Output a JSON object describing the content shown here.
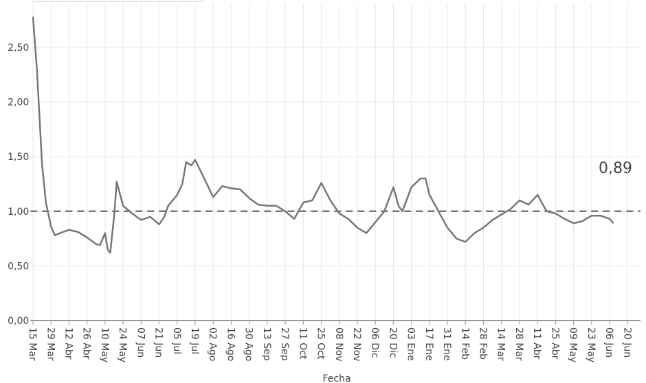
{
  "chart_data": {
    "type": "line",
    "x_label": "Fecha",
    "annotation": "0,89",
    "x": [
      0,
      3,
      7,
      10,
      14,
      17,
      21,
      28,
      35,
      42,
      49,
      52,
      56,
      58,
      60,
      63,
      65,
      70,
      77,
      84,
      91,
      98,
      102,
      105,
      112,
      116,
      119,
      123,
      126,
      133,
      140,
      147,
      154,
      161,
      168,
      175,
      182,
      189,
      196,
      203,
      210,
      217,
      224,
      231,
      238,
      245,
      252,
      259,
      266,
      273,
      280,
      284,
      287,
      294,
      301,
      305,
      308,
      315,
      322,
      329,
      336,
      343,
      350,
      357,
      364,
      371,
      378,
      385,
      392,
      399,
      406,
      413,
      420,
      427,
      434,
      441,
      448,
      451
    ],
    "values": [
      2.78,
      2.3,
      1.43,
      1.08,
      0.86,
      0.78,
      0.8,
      0.83,
      0.81,
      0.76,
      0.7,
      0.69,
      0.8,
      0.65,
      0.62,
      0.95,
      1.27,
      1.05,
      0.98,
      0.92,
      0.95,
      0.88,
      0.95,
      1.05,
      1.15,
      1.25,
      1.45,
      1.42,
      1.47,
      1.3,
      1.13,
      1.23,
      1.21,
      1.2,
      1.12,
      1.06,
      1.05,
      1.05,
      1.0,
      0.93,
      1.08,
      1.1,
      1.26,
      1.1,
      0.98,
      0.93,
      0.85,
      0.8,
      0.9,
      1.0,
      1.22,
      1.05,
      1.0,
      1.22,
      1.3,
      1.3,
      1.15,
      1.0,
      0.85,
      0.75,
      0.72,
      0.8,
      0.85,
      0.92,
      0.97,
      1.02,
      1.1,
      1.06,
      1.15,
      1.0,
      0.98,
      0.93,
      0.89,
      0.91,
      0.96,
      0.96,
      0.93,
      0.89
    ],
    "color": "#777777",
    "hline": 1,
    "grid": true,
    "xlim": [
      -2,
      472
    ],
    "ylim": [
      0,
      2.9
    ],
    "xticks": [
      {
        "value": 0,
        "label": "15 Mar"
      },
      {
        "value": 14,
        "label": "29 Mar"
      },
      {
        "value": 28,
        "label": "12 Abr"
      },
      {
        "value": 42,
        "label": "26 Abr"
      },
      {
        "value": 56,
        "label": "10 May"
      },
      {
        "value": 70,
        "label": "24 May"
      },
      {
        "value": 84,
        "label": "07 Jun"
      },
      {
        "value": 98,
        "label": "21 Jun"
      },
      {
        "value": 112,
        "label": "05 Jul"
      },
      {
        "value": 126,
        "label": "19 Jul"
      },
      {
        "value": 140,
        "label": "02 Ago"
      },
      {
        "value": 154,
        "label": "16 Ago"
      },
      {
        "value": 168,
        "label": "30 Ago"
      },
      {
        "value": 182,
        "label": "13 Sep"
      },
      {
        "value": 196,
        "label": "27 Sep"
      },
      {
        "value": 210,
        "label": "11 Oct"
      },
      {
        "value": 224,
        "label": "25 Oct"
      },
      {
        "value": 238,
        "label": "08 Nov"
      },
      {
        "value": 252,
        "label": "22 Nov"
      },
      {
        "value": 266,
        "label": "06 Dic"
      },
      {
        "value": 280,
        "label": "20 Dic"
      },
      {
        "value": 294,
        "label": "03 Ene"
      },
      {
        "value": 308,
        "label": "17 Ene"
      },
      {
        "value": 322,
        "label": "31 Ene"
      },
      {
        "value": 336,
        "label": "14 Feb"
      },
      {
        "value": 350,
        "label": "28 Feb"
      },
      {
        "value": 364,
        "label": "14 Mar"
      },
      {
        "value": 378,
        "label": "28 Mar"
      },
      {
        "value": 392,
        "label": "11 Abr"
      },
      {
        "value": 406,
        "label": "25 Abr"
      },
      {
        "value": 420,
        "label": "09 May"
      },
      {
        "value": 434,
        "label": "23 May"
      },
      {
        "value": 448,
        "label": "06 Jun"
      },
      {
        "value": 462,
        "label": "20 Jun"
      }
    ],
    "yticks": [
      {
        "value": 0,
        "label": "0,00"
      },
      {
        "value": 0.5,
        "label": "0,50"
      },
      {
        "value": 1,
        "label": "1,00"
      },
      {
        "value": 1.5,
        "label": "1,50"
      },
      {
        "value": 2,
        "label": "2,00"
      },
      {
        "value": 2.5,
        "label": "2,50"
      }
    ]
  }
}
